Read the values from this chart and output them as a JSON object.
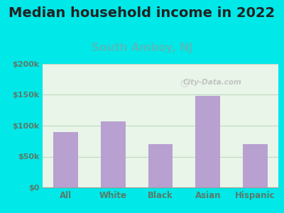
{
  "title": "Median household income in 2022",
  "subtitle": "South Amboy, NJ",
  "categories": [
    "All",
    "White",
    "Black",
    "Asian",
    "Hispanic"
  ],
  "values": [
    90000,
    107000,
    70000,
    148000,
    70000
  ],
  "bar_color": "#b8a0d0",
  "title_fontsize": 14,
  "subtitle_fontsize": 11,
  "subtitle_color": "#4dbfbf",
  "tick_label_color": "#5a7a6a",
  "background_outer": "#00e8e8",
  "background_plot": "#e8f5e8",
  "ylim": [
    0,
    200000
  ],
  "yticks": [
    0,
    50000,
    100000,
    150000,
    200000
  ],
  "ytick_labels": [
    "$0",
    "$50k",
    "$100k",
    "$150k",
    "$200k"
  ],
  "watermark": "City-Data.com",
  "grid_color": "#c0d8c0"
}
